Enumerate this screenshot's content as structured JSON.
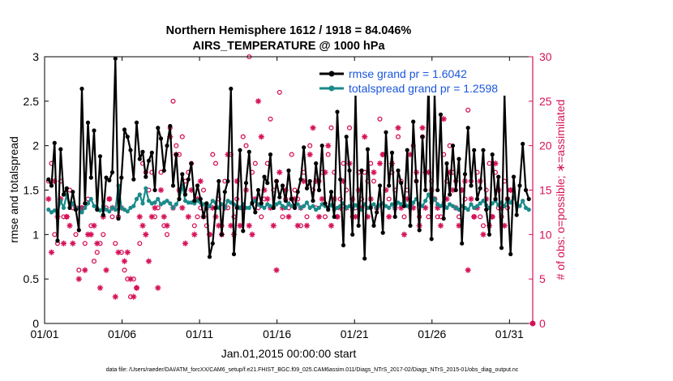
{
  "chart_data": {
    "type": "line",
    "title": "Northern Hemisphere 1612 / 1918 = 84.046%",
    "subtitle": "AIRS_TEMPERATURE @ 1000 hPa",
    "xlabel": "Jan.01,2015 00:00:00 start",
    "ylabel": "rmse and totalspread",
    "y2label": "# of obs: o=possible; ∗=assimilated",
    "footnote": "data file: /Users/raeder/DAI/ATM_forcXX/CAM6_setup/f.e21.FHIST_BGC.f09_025.CAM6assim.011/Diags_NTrS_2017-02/Diags_NTrS_2015-01/obs_diag_output.nc",
    "xlim": [
      0,
      31.5
    ],
    "ylim": [
      0,
      3
    ],
    "y2lim": [
      0,
      30
    ],
    "x_ticks": [
      0,
      5,
      10,
      15,
      20,
      25,
      30
    ],
    "x_tick_labels": [
      "01/01",
      "01/06",
      "01/11",
      "01/16",
      "01/21",
      "01/26",
      "01/31"
    ],
    "y_ticks": [
      0,
      0.5,
      1,
      1.5,
      2,
      2.5,
      3
    ],
    "y_tick_labels": [
      "0",
      "0.5",
      "1",
      "1.5",
      "2",
      "2.5",
      "3"
    ],
    "y2_ticks": [
      0,
      5,
      10,
      15,
      20,
      25,
      30
    ],
    "y2_tick_labels": [
      "0",
      "5",
      "10",
      "15",
      "20",
      "25",
      "30"
    ],
    "grid": false,
    "legend_position": "top-right",
    "colors": {
      "rmse": "#000000",
      "spread": "#1a8a8a",
      "obs": "#d6125a",
      "legend_text": "#1a56db"
    },
    "series": [
      {
        "name": "rmse grand pr = 1.6042",
        "marker": "filled-circle",
        "values": [
          1.62,
          1.55,
          2.03,
          0.93,
          1.96,
          1.45,
          1.52,
          1.3,
          1.48,
          1.28,
          1.05,
          2.64,
          1.35,
          2.26,
          1.64,
          2.17,
          1.28,
          1.88,
          1.22,
          1.64,
          1.61,
          1.7,
          2.98,
          1.18,
          1.64,
          2.18,
          2.1,
          1.95,
          1.62,
          2.26,
          1.85,
          1.93,
          1.65,
          1.83,
          1.92,
          1.5,
          2.2,
          2.08,
          1.72,
          2.0,
          2.22,
          1.55,
          1.9,
          1.4,
          1.68,
          1.45,
          1.62,
          1.8,
          1.38,
          1.55,
          1.4,
          1.2,
          1.35,
          0.75,
          0.9,
          1.3,
          1.6,
          1.0,
          1.48,
          1.6,
          2.64,
          0.78,
          1.3,
          1.95,
          1.04,
          1.58,
          1.93,
          1.35,
          1.25,
          1.5,
          1.35,
          1.65,
          1.58,
          1.9,
          1.3,
          1.6,
          1.42,
          1.55,
          1.38,
          1.72,
          1.4,
          1.3,
          1.48,
          1.62,
          1.98,
          1.52,
          1.6,
          1.38,
          1.8,
          1.5,
          2.0,
          1.35,
          1.28,
          1.48,
          1.2,
          2.38,
          1.62,
          0.88,
          2.1,
          1.72,
          1.0,
          2.58,
          1.1,
          1.72,
          0.73,
          1.96,
          1.3,
          1.1,
          1.25,
          1.55,
          1.02,
          2.15,
          1.55,
          1.92,
          1.2,
          1.72,
          1.58,
          1.32,
          1.95,
          1.1,
          2.27,
          1.6,
          1.05,
          2.1,
          1.5,
          2.74,
          0.95,
          2.58,
          1.5,
          2.35,
          1.18,
          1.8,
          1.45,
          2.0,
          1.5,
          1.85,
          0.9,
          1.68,
          2.2,
          1.55,
          1.95,
          1.4,
          1.52,
          1.95,
          1.28,
          1.0,
          1.9,
          1.4,
          1.65,
          0.85,
          2.58,
          1.4,
          0.78,
          1.65,
          1.22,
          1.55,
          2.02,
          1.5,
          1.4
        ]
      },
      {
        "name": "totalspread grand pr = 1.2598",
        "marker": "filled-circle",
        "values": [
          1.28,
          1.25,
          1.27,
          1.24,
          1.38,
          1.3,
          1.45,
          1.3,
          1.35,
          1.28,
          1.3,
          1.25,
          1.3,
          1.35,
          1.4,
          1.32,
          1.3,
          1.27,
          1.32,
          1.28,
          1.26,
          1.3,
          1.28,
          1.55,
          1.3,
          1.28,
          1.26,
          1.3,
          1.32,
          1.4,
          1.45,
          1.35,
          1.52,
          1.38,
          1.35,
          1.36,
          1.4,
          1.34,
          1.36,
          1.38,
          1.35,
          1.3,
          1.34,
          1.4,
          1.55,
          1.38,
          1.36,
          1.36,
          1.35,
          1.38,
          1.36,
          1.34,
          1.3,
          1.32,
          1.38,
          1.36,
          1.3,
          1.34,
          1.3,
          1.38,
          1.36,
          1.34,
          1.32,
          1.3,
          1.34,
          1.3,
          1.3,
          1.36,
          1.38,
          1.34,
          1.32,
          1.3,
          1.34,
          1.32,
          1.3,
          1.34,
          1.36,
          1.32,
          1.3,
          1.35,
          1.32,
          1.3,
          1.34,
          1.3,
          1.32,
          1.36,
          1.3,
          1.32,
          1.28,
          1.3,
          1.34,
          1.32,
          1.3,
          1.33,
          1.28,
          1.3,
          1.32,
          1.35,
          1.3,
          1.32,
          1.28,
          1.33,
          1.3,
          1.28,
          1.34,
          1.3,
          1.32,
          1.34,
          1.3,
          1.33,
          1.35,
          1.32,
          1.3,
          1.34,
          1.3,
          1.36,
          1.34,
          1.38,
          1.32,
          1.3,
          1.36,
          1.4,
          1.34,
          1.32,
          1.38,
          1.45,
          1.36,
          1.4,
          1.34,
          1.32,
          1.36,
          1.3,
          1.34,
          1.32,
          1.3,
          1.28,
          1.32,
          1.3,
          1.28,
          1.34,
          1.3,
          1.32,
          1.35,
          1.38,
          1.33,
          1.3,
          1.35,
          1.38,
          1.33,
          1.36,
          1.32,
          1.4,
          1.36,
          1.42,
          1.35,
          1.32,
          1.38,
          1.3,
          1.28
        ]
      }
    ],
    "obs_possible": [
      16,
      18,
      10,
      9,
      16,
      12,
      12,
      15,
      13,
      10,
      6,
      13,
      9,
      14,
      11,
      7,
      8,
      9,
      10,
      13,
      14,
      12,
      9,
      12,
      8,
      6,
      5,
      3,
      5,
      4,
      9,
      18,
      17,
      15,
      17,
      12,
      13,
      17,
      11,
      10,
      22,
      25,
      20,
      19,
      21,
      16,
      17,
      18,
      11,
      12,
      13,
      15,
      11,
      10,
      19,
      18,
      14,
      11,
      16,
      13,
      19,
      12,
      14,
      13,
      21,
      20,
      30,
      17,
      18,
      13,
      12,
      14,
      18,
      23,
      15,
      16,
      26,
      12,
      14,
      13,
      19,
      15,
      14,
      11,
      17,
      12,
      20,
      15,
      13,
      16,
      17,
      12,
      19,
      22,
      17,
      12,
      14,
      18,
      15,
      22,
      12,
      13,
      17,
      14,
      17,
      16,
      18,
      16,
      13,
      23,
      19,
      26,
      14,
      17,
      15,
      21,
      16,
      12,
      15,
      13,
      20,
      16,
      12,
      21,
      17,
      12,
      16,
      14,
      12,
      12,
      19,
      16,
      20,
      17,
      16,
      12,
      15,
      14,
      24,
      16,
      12,
      17,
      12,
      11,
      15,
      18,
      12,
      17,
      13,
      12,
      16,
      13,
      15
    ],
    "obs_assimilated": [
      14,
      8,
      16,
      12,
      14,
      9,
      12,
      11,
      9,
      13,
      5,
      13,
      6,
      10,
      10,
      11,
      9,
      4,
      12,
      6,
      14,
      13,
      3,
      8,
      13,
      7,
      8,
      5,
      3,
      4,
      12,
      11,
      10,
      7,
      12,
      13,
      4,
      15,
      12,
      11,
      21,
      13,
      19,
      15,
      13,
      9,
      12,
      15,
      10,
      14,
      16,
      12,
      13,
      10,
      13,
      12,
      11,
      10,
      13,
      19,
      11,
      10,
      16,
      11,
      13,
      15,
      11,
      10,
      14,
      25,
      21,
      15,
      14,
      13,
      11,
      6,
      17,
      13,
      15,
      12,
      14,
      14,
      11,
      13,
      16,
      11,
      19,
      22,
      16,
      12,
      14,
      17,
      20,
      11,
      14,
      12,
      13,
      16,
      13,
      18,
      14,
      12,
      15,
      13,
      21,
      12,
      14,
      17,
      13,
      18,
      19,
      15,
      12,
      18,
      13,
      22,
      13,
      10,
      14,
      19,
      13,
      17,
      11,
      22,
      13,
      17,
      15,
      14,
      13,
      11,
      23,
      14,
      17,
      15,
      13,
      11,
      15,
      16,
      6,
      14,
      12,
      13,
      16,
      10,
      14,
      11,
      12,
      18,
      15,
      13,
      11,
      14,
      15
    ]
  }
}
